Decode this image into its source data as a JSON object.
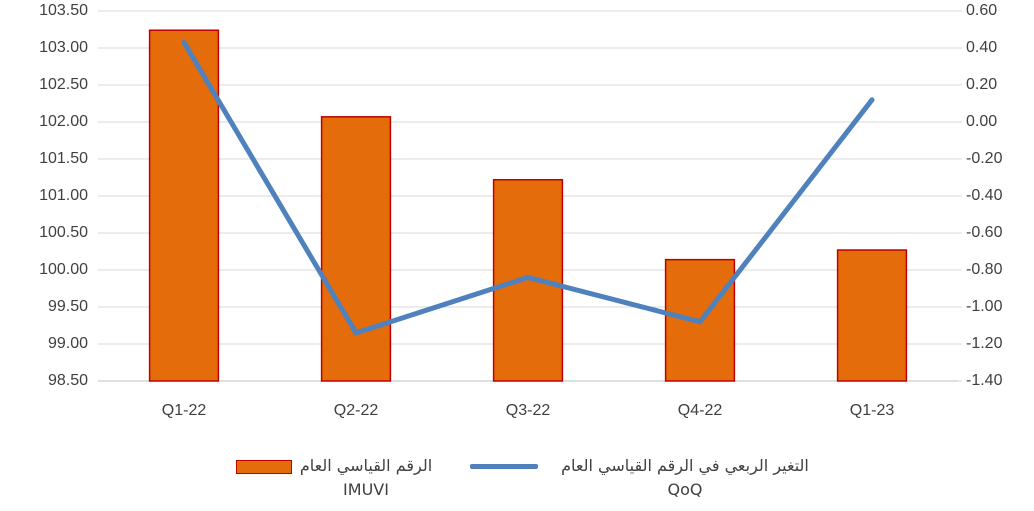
{
  "chart_data": {
    "type": "bar-line",
    "categories": [
      "Q1-22",
      "Q2-22",
      "Q3-22",
      "Q4-22",
      "Q1-23"
    ],
    "series": [
      {
        "name": "الرقم القياسي العام IMUVI",
        "type": "bar",
        "color": "#E46C0A",
        "edgecolor": "#C00000",
        "axis": "y",
        "values": [
          103.24,
          102.07,
          101.22,
          100.14,
          100.27
        ]
      },
      {
        "name": "التغير الربعي  في الرقم القياسي العام QoQ",
        "type": "line",
        "color": "#4F81BD",
        "axis": "y2",
        "values": [
          0.43,
          -1.14,
          -0.84,
          -1.08,
          0.12
        ]
      }
    ],
    "ylim": [
      98.5,
      103.5
    ],
    "yticks": [
      {
        "value": 98.5,
        "label": "98.50"
      },
      {
        "value": 99,
        "label": "99.00"
      },
      {
        "value": 99.5,
        "label": "99.50"
      },
      {
        "value": 100,
        "label": "100.00"
      },
      {
        "value": 100.5,
        "label": "100.50"
      },
      {
        "value": 101,
        "label": "101.00"
      },
      {
        "value": 101.5,
        "label": "101.50"
      },
      {
        "value": 102,
        "label": "102.00"
      },
      {
        "value": 102.5,
        "label": "102.50"
      },
      {
        "value": 103,
        "label": "103.00"
      },
      {
        "value": 103.5,
        "label": "103.50"
      }
    ],
    "y2lim": [
      -1.4,
      0.6
    ],
    "y2ticks": [
      {
        "value": -1.4,
        "label": "-1.40"
      },
      {
        "value": -1.2,
        "label": "-1.20"
      },
      {
        "value": -1,
        "label": "-1.00"
      },
      {
        "value": -0.8,
        "label": "-0.80"
      },
      {
        "value": -0.6,
        "label": "-0.60"
      },
      {
        "value": -0.4,
        "label": "-0.40"
      },
      {
        "value": -0.2,
        "label": "-0.20"
      },
      {
        "value": 0,
        "label": "0.00"
      },
      {
        "value": 0.2,
        "label": "0.20"
      },
      {
        "value": 0.4,
        "label": "0.40"
      },
      {
        "value": 0.6,
        "label": "0.60"
      }
    ],
    "grid": true,
    "legend": "bottom"
  }
}
